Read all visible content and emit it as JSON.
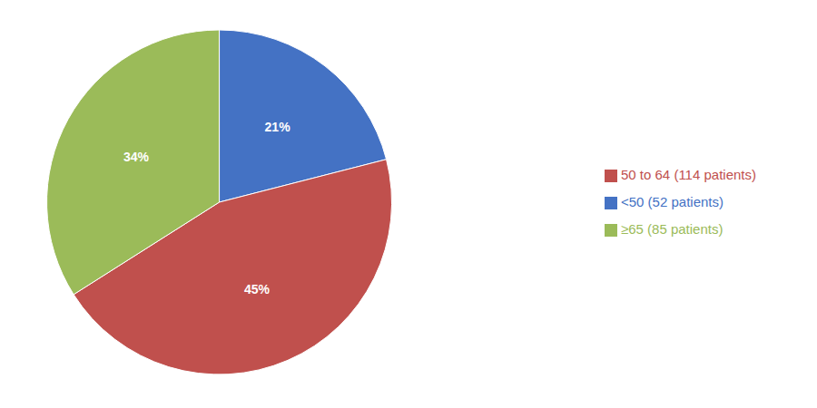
{
  "chart_data": {
    "type": "pie",
    "categories": [
      "<50 (52 patients)",
      "50 to 64 (114 patients)",
      "≥65 (85 patients)"
    ],
    "values": [
      21,
      45,
      34
    ],
    "value_labels": [
      "21%",
      "45%",
      "34%"
    ],
    "colors": [
      "#4472C4",
      "#C0504D",
      "#9BBB59"
    ],
    "data_labels": true,
    "legend": "right"
  }
}
